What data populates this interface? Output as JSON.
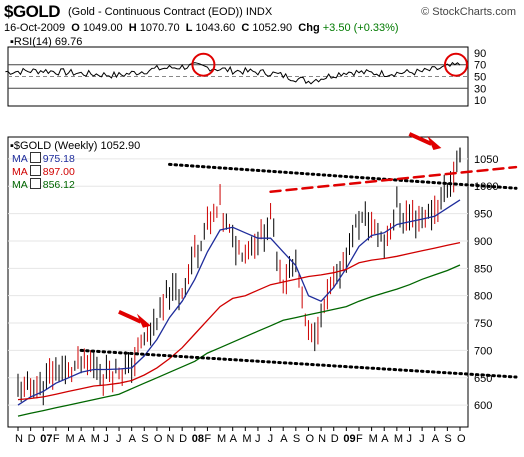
{
  "header": {
    "ticker": "$GOLD",
    "name": "(Gold - Continuous Contract (EOD))",
    "exchange": "INDX",
    "source": "© StockCharts.com",
    "date": "16-Oct-2009",
    "open": "1049.00",
    "high": "1070.70",
    "low": "1043.60",
    "close": "1052.90",
    "change": "+3.50 (+0.33%)"
  },
  "rsi": {
    "label": "RSI(14) 69.76"
  },
  "main": {
    "label": "$GOLD (Weekly) 1052.90",
    "legend": [
      {
        "name": "MA",
        "value": "975.18",
        "color": "#1f2d9c"
      },
      {
        "name": "MA",
        "value": "897.00",
        "color": "#d00000"
      },
      {
        "name": "MA",
        "value": "856.12",
        "color": "#006600"
      }
    ]
  },
  "chart_data": [
    {
      "type": "line",
      "title": "RSI(14) 69.76",
      "yticks": [
        10,
        30,
        50,
        70,
        90
      ],
      "ylim": [
        0,
        100
      ],
      "reference_lines": [
        30,
        50,
        70
      ],
      "x": [
        "2006-10",
        "2007-01",
        "2007-04",
        "2007-07",
        "2007-10",
        "2008-01",
        "2008-04",
        "2008-07",
        "2008-10",
        "2009-01",
        "2009-04",
        "2009-07",
        "2009-10"
      ],
      "series": [
        {
          "values": [
            58,
            60,
            55,
            52,
            63,
            68,
            60,
            56,
            42,
            58,
            55,
            58,
            70
          ]
        }
      ]
    },
    {
      "type": "line",
      "title": "$GOLD (Weekly) 1052.90",
      "yticks": [
        600,
        650,
        700,
        750,
        800,
        850,
        900,
        950,
        1000,
        1050
      ],
      "ylim": [
        560,
        1090
      ],
      "xticks": [
        "N",
        "D",
        "07",
        "F",
        "M",
        "A",
        "M",
        "J",
        "J",
        "A",
        "S",
        "O",
        "N",
        "D",
        "08",
        "F",
        "M",
        "A",
        "M",
        "J",
        "J",
        "A",
        "S",
        "O",
        "N",
        "D",
        "09",
        "F",
        "M",
        "A",
        "M",
        "J",
        "J",
        "A",
        "S",
        "O"
      ],
      "x": [
        "2006-11",
        "2006-12",
        "2007-01",
        "2007-02",
        "2007-03",
        "2007-04",
        "2007-05",
        "2007-06",
        "2007-07",
        "2007-08",
        "2007-09",
        "2007-10",
        "2007-11",
        "2007-12",
        "2008-01",
        "2008-02",
        "2008-03",
        "2008-04",
        "2008-05",
        "2008-06",
        "2008-07",
        "2008-08",
        "2008-09",
        "2008-10",
        "2008-11",
        "2008-12",
        "2009-01",
        "2009-02",
        "2009-03",
        "2009-04",
        "2009-05",
        "2009-06",
        "2009-07",
        "2009-08",
        "2009-09",
        "2009-10"
      ],
      "series": [
        {
          "values": [
            625,
            630,
            640,
            665,
            660,
            680,
            675,
            655,
            665,
            670,
            720,
            760,
            800,
            810,
            880,
            930,
            960,
            900,
            880,
            905,
            940,
            830,
            860,
            720,
            760,
            820,
            880,
            940,
            930,
            900,
            960,
            940,
            940,
            960,
            1000,
            1052
          ]
        },
        {
          "values": [
            600,
            615,
            625,
            640,
            650,
            660,
            665,
            665,
            666,
            668,
            690,
            720,
            760,
            790,
            830,
            880,
            920,
            925,
            915,
            905,
            905,
            880,
            855,
            800,
            790,
            815,
            850,
            890,
            910,
            915,
            930,
            935,
            940,
            945,
            960,
            975
          ]
        },
        {
          "values": [
            610,
            612,
            615,
            620,
            625,
            630,
            635,
            637,
            640,
            645,
            655,
            668,
            685,
            705,
            730,
            755,
            780,
            795,
            800,
            810,
            820,
            825,
            830,
            835,
            838,
            842,
            848,
            860,
            865,
            868,
            872,
            877,
            882,
            887,
            892,
            897
          ]
        },
        {
          "values": [
            580,
            585,
            590,
            595,
            600,
            605,
            610,
            615,
            620,
            630,
            640,
            650,
            660,
            670,
            680,
            695,
            705,
            715,
            725,
            735,
            745,
            755,
            760,
            765,
            770,
            775,
            780,
            790,
            798,
            805,
            812,
            820,
            830,
            838,
            846,
            856
          ]
        }
      ],
      "annotations": [
        {
          "type": "trendline",
          "style": "dotted",
          "color": "#000000",
          "from": {
            "x": "2007-04",
            "y": 700
          },
          "to": {
            "x": "2009-10",
            "y": 655
          }
        },
        {
          "type": "trendline",
          "style": "dotted",
          "color": "#000000",
          "from": {
            "x": "2007-11",
            "y": 1040
          },
          "to": {
            "x": "2009-10",
            "y": 1000
          }
        },
        {
          "type": "trendline",
          "style": "dashed",
          "color": "#e00000",
          "from": {
            "x": "2008-07",
            "y": 990
          },
          "to": {
            "x": "2009-10",
            "y": 1035
          }
        },
        {
          "type": "arrow",
          "color": "#e00000",
          "at": {
            "x": "2007-10",
            "y": 745
          }
        },
        {
          "type": "arrow",
          "color": "#e00000",
          "at": {
            "x": "2009-09",
            "y": 1070
          }
        },
        {
          "type": "circle",
          "color": "#e00000",
          "panel": "rsi",
          "at": "2008-02"
        },
        {
          "type": "circle",
          "color": "#e00000",
          "panel": "rsi",
          "at": "2009-10"
        }
      ]
    }
  ]
}
